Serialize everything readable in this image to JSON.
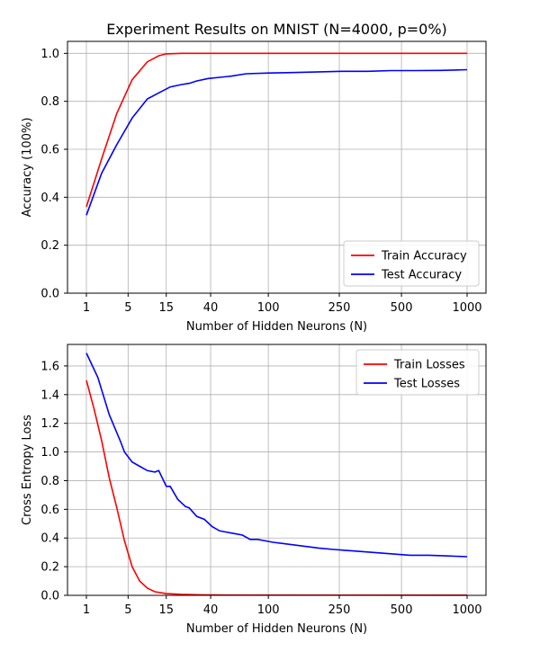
{
  "chart_data": [
    {
      "type": "line",
      "title": "Experiment Results on MNIST (N=4000, p=0%)",
      "xlabel": "Number of Hidden Neurons (N)",
      "ylabel": "Accuracy (100%)",
      "x_tick_labels": [
        "1",
        "5",
        "15",
        "40",
        "100",
        "250",
        "500",
        "1000"
      ],
      "y_tick_labels": [
        "0.0",
        "0.2",
        "0.4",
        "0.6",
        "0.8",
        "1.0"
      ],
      "ylim": [
        0,
        1.05
      ],
      "grid": true,
      "legend_position": "bottom-right",
      "series": [
        {
          "name": "Train Accuracy",
          "color": "#ff0000",
          "points": [
            [
              0,
              0.36
            ],
            [
              0.04,
              0.56
            ],
            [
              0.08,
              0.75
            ],
            [
              0.12,
              0.89
            ],
            [
              0.16,
              0.965
            ],
            [
              0.19,
              0.99
            ],
            [
              0.21,
              0.998
            ],
            [
              0.25,
              1.0
            ],
            [
              0.5,
              1.0
            ],
            [
              1,
              1.0
            ]
          ]
        },
        {
          "name": "Test Accuracy",
          "color": "#0000ff",
          "points": [
            [
              0,
              0.325
            ],
            [
              0.04,
              0.5
            ],
            [
              0.08,
              0.62
            ],
            [
              0.12,
              0.73
            ],
            [
              0.16,
              0.81
            ],
            [
              0.19,
              0.835
            ],
            [
              0.22,
              0.86
            ],
            [
              0.25,
              0.87
            ],
            [
              0.27,
              0.875
            ],
            [
              0.29,
              0.885
            ],
            [
              0.32,
              0.895
            ],
            [
              0.35,
              0.9
            ],
            [
              0.38,
              0.905
            ],
            [
              0.42,
              0.915
            ],
            [
              0.48,
              0.918
            ],
            [
              0.54,
              0.92
            ],
            [
              0.6,
              0.922
            ],
            [
              0.67,
              0.925
            ],
            [
              0.74,
              0.925
            ],
            [
              0.8,
              0.928
            ],
            [
              0.86,
              0.928
            ],
            [
              0.93,
              0.929
            ],
            [
              1,
              0.932
            ]
          ]
        }
      ]
    },
    {
      "type": "line",
      "title": "",
      "xlabel": "Number of Hidden Neurons (N)",
      "ylabel": "Cross Entropy Loss",
      "x_tick_labels": [
        "1",
        "5",
        "15",
        "40",
        "100",
        "250",
        "500",
        "1000"
      ],
      "y_tick_labels": [
        "0.0",
        "0.2",
        "0.4",
        "0.6",
        "0.8",
        "1.0",
        "1.2",
        "1.4",
        "1.6"
      ],
      "ylim": [
        0,
        1.75
      ],
      "grid": true,
      "legend_position": "top-right",
      "series": [
        {
          "name": "Train Losses",
          "color": "#ff0000",
          "points": [
            [
              0,
              1.5
            ],
            [
              0.02,
              1.3
            ],
            [
              0.04,
              1.08
            ],
            [
              0.06,
              0.82
            ],
            [
              0.08,
              0.61
            ],
            [
              0.1,
              0.38
            ],
            [
              0.12,
              0.2
            ],
            [
              0.14,
              0.1
            ],
            [
              0.16,
              0.05
            ],
            [
              0.18,
              0.025
            ],
            [
              0.21,
              0.012
            ],
            [
              0.25,
              0.007
            ],
            [
              0.3,
              0.004
            ],
            [
              0.4,
              0.002
            ],
            [
              1,
              0.001
            ]
          ]
        },
        {
          "name": "Test Losses",
          "color": "#0000ff",
          "points": [
            [
              0,
              1.69
            ],
            [
              0.03,
              1.52
            ],
            [
              0.06,
              1.26
            ],
            [
              0.09,
              1.07
            ],
            [
              0.1,
              1.0
            ],
            [
              0.12,
              0.93
            ],
            [
              0.14,
              0.9
            ],
            [
              0.16,
              0.87
            ],
            [
              0.18,
              0.86
            ],
            [
              0.19,
              0.87
            ],
            [
              0.21,
              0.76
            ],
            [
              0.22,
              0.76
            ],
            [
              0.24,
              0.67
            ],
            [
              0.26,
              0.62
            ],
            [
              0.27,
              0.61
            ],
            [
              0.29,
              0.55
            ],
            [
              0.31,
              0.53
            ],
            [
              0.33,
              0.48
            ],
            [
              0.35,
              0.45
            ],
            [
              0.37,
              0.44
            ],
            [
              0.39,
              0.43
            ],
            [
              0.41,
              0.42
            ],
            [
              0.43,
              0.39
            ],
            [
              0.45,
              0.39
            ],
            [
              0.47,
              0.38
            ],
            [
              0.49,
              0.37
            ],
            [
              0.52,
              0.36
            ],
            [
              0.55,
              0.35
            ],
            [
              0.58,
              0.34
            ],
            [
              0.61,
              0.33
            ],
            [
              0.65,
              0.32
            ],
            [
              0.7,
              0.31
            ],
            [
              0.75,
              0.3
            ],
            [
              0.8,
              0.29
            ],
            [
              0.85,
              0.28
            ],
            [
              0.9,
              0.28
            ],
            [
              0.95,
              0.275
            ],
            [
              1,
              0.27
            ]
          ]
        }
      ]
    }
  ]
}
